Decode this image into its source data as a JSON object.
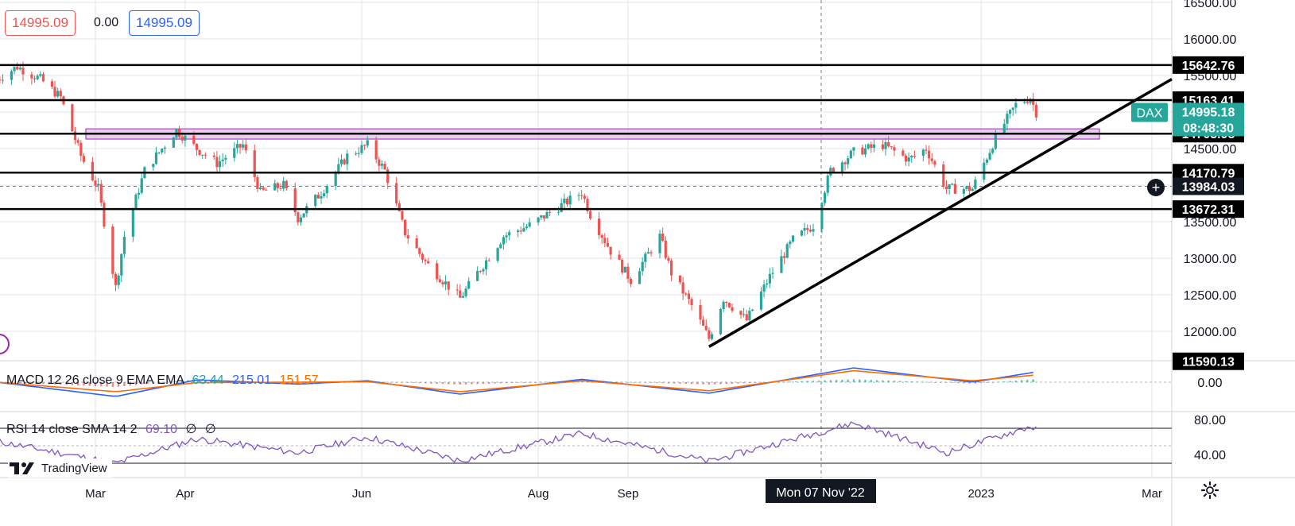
{
  "legend": {
    "sell_price": "14995.09",
    "spread": "0.00",
    "buy_price": "14995.09"
  },
  "colors": {
    "up": "#26a69a",
    "down": "#ef5350",
    "macd_line": "#2962ff",
    "signal_line": "#ff6d00",
    "rsi_line": "#7e57c2",
    "zone_fill": "#e1bee7",
    "zone_stroke": "#ab47bc",
    "level_line": "#000000",
    "grid": "#e0e3eb"
  },
  "indicators": {
    "macd": {
      "label": "MACD 12 26 close 9 EMA EMA",
      "v1": "63.44",
      "v2": "215.01",
      "v3": "151.57",
      "v1_color": "#26a69a",
      "v2_color": "#2962ff",
      "v3_color": "#ff6d00"
    },
    "rsi": {
      "label": "RSI 14 close SMA 14 2",
      "v1": "69.10",
      "v2": "∅",
      "v3": "∅"
    }
  },
  "branding": {
    "logo_text": "TradingView"
  },
  "symbol_tag": {
    "name": "DAX",
    "price": "14995.18",
    "countdown": "08:48:30"
  },
  "crosshair_tag": {
    "date": "Mon 07 Nov '22",
    "price": "13984.03"
  },
  "chart_data": {
    "type": "candlestick",
    "title": "",
    "x_axis": {
      "ticks": [
        "Mar",
        "Apr",
        "Jun",
        "Aug",
        "Sep",
        "2023",
        "Mar"
      ],
      "range": [
        "2022-01-25",
        "2023-03-15"
      ]
    },
    "y_axis": {
      "ticks": [
        12000,
        12500,
        13000,
        13500,
        14000,
        14500,
        15000,
        15500,
        16000,
        16500
      ],
      "tick_labels": [
        "12000.00",
        "12500.00",
        "13000.00",
        "13500.00",
        "14000.00",
        "14500.00",
        "15000.00",
        "15500.00",
        "16000.00",
        "16500.00"
      ],
      "range": [
        11600,
        16550
      ]
    },
    "horizontal_levels": [
      {
        "value": 15642.76,
        "label": "15642.76"
      },
      {
        "value": 15163.41,
        "label": "15163.41"
      },
      {
        "value": 14703.98,
        "label": "14703.98"
      },
      {
        "value": 14170.79,
        "label": "14170.79"
      },
      {
        "value": 13672.31,
        "label": "13672.31"
      },
      {
        "value": 11590.13,
        "label": "11590.13"
      }
    ],
    "resistance_zone": [
      14630,
      14770
    ],
    "trendline": {
      "from": {
        "date": "2022-09-29",
        "value": 11790
      },
      "to": {
        "date": "2023-02-28",
        "value": 15450
      }
    },
    "current_price": 14995.18,
    "ohlc_path": [
      {
        "date": "2022-01-26",
        "value": 15450
      },
      {
        "date": "2022-02-02",
        "value": 15620
      },
      {
        "date": "2022-02-10",
        "value": 15450
      },
      {
        "date": "2022-02-17",
        "value": 15200
      },
      {
        "date": "2022-02-24",
        "value": 14400
      },
      {
        "date": "2022-03-02",
        "value": 13950
      },
      {
        "date": "2022-03-08",
        "value": 12600
      },
      {
        "date": "2022-03-11",
        "value": 13300
      },
      {
        "date": "2022-03-18",
        "value": 14200
      },
      {
        "date": "2022-03-29",
        "value": 14750
      },
      {
        "date": "2022-04-05",
        "value": 14500
      },
      {
        "date": "2022-04-12",
        "value": 14300
      },
      {
        "date": "2022-04-21",
        "value": 14550
      },
      {
        "date": "2022-04-27",
        "value": 13900
      },
      {
        "date": "2022-05-05",
        "value": 14000
      },
      {
        "date": "2022-05-10",
        "value": 13550
      },
      {
        "date": "2022-05-18",
        "value": 13900
      },
      {
        "date": "2022-05-27",
        "value": 14400
      },
      {
        "date": "2022-06-03",
        "value": 14550
      },
      {
        "date": "2022-06-09",
        "value": 14200
      },
      {
        "date": "2022-06-16",
        "value": 13350
      },
      {
        "date": "2022-06-23",
        "value": 12950
      },
      {
        "date": "2022-07-05",
        "value": 12450
      },
      {
        "date": "2022-07-11",
        "value": 12800
      },
      {
        "date": "2022-07-20",
        "value": 13300
      },
      {
        "date": "2022-07-29",
        "value": 13450
      },
      {
        "date": "2022-08-08",
        "value": 13700
      },
      {
        "date": "2022-08-16",
        "value": 13900
      },
      {
        "date": "2022-08-19",
        "value": 13600
      },
      {
        "date": "2022-08-26",
        "value": 13100
      },
      {
        "date": "2022-09-02",
        "value": 12700
      },
      {
        "date": "2022-09-12",
        "value": 13300
      },
      {
        "date": "2022-09-16",
        "value": 12800
      },
      {
        "date": "2022-09-23",
        "value": 12350
      },
      {
        "date": "2022-09-29",
        "value": 11900
      },
      {
        "date": "2022-10-04",
        "value": 12450
      },
      {
        "date": "2022-10-12",
        "value": 12150
      },
      {
        "date": "2022-10-20",
        "value": 12750
      },
      {
        "date": "2022-10-28",
        "value": 13250
      },
      {
        "date": "2022-11-04",
        "value": 13450
      },
      {
        "date": "2022-11-10",
        "value": 14200
      },
      {
        "date": "2022-11-18",
        "value": 14450
      },
      {
        "date": "2022-11-28",
        "value": 14550
      },
      {
        "date": "2022-12-07",
        "value": 14350
      },
      {
        "date": "2022-12-13",
        "value": 14500
      },
      {
        "date": "2022-12-20",
        "value": 13950
      },
      {
        "date": "2022-12-29",
        "value": 13950
      },
      {
        "date": "2023-01-06",
        "value": 14650
      },
      {
        "date": "2023-01-13",
        "value": 15100
      },
      {
        "date": "2023-01-18",
        "value": 15200
      },
      {
        "date": "2023-01-20",
        "value": 14995
      }
    ],
    "macd_path": [
      {
        "date": "2022-01-26",
        "macd": 0,
        "signal": 0
      },
      {
        "date": "2022-03-08",
        "macd": -300,
        "signal": -200
      },
      {
        "date": "2022-04-05",
        "macd": 50,
        "signal": -10
      },
      {
        "date": "2022-05-10",
        "macd": -40,
        "signal": 0
      },
      {
        "date": "2022-06-03",
        "macd": 30,
        "signal": 10
      },
      {
        "date": "2022-07-05",
        "macd": -250,
        "signal": -200
      },
      {
        "date": "2022-08-16",
        "macd": 60,
        "signal": 30
      },
      {
        "date": "2022-09-29",
        "macd": -230,
        "signal": -180
      },
      {
        "date": "2022-11-18",
        "macd": 300,
        "signal": 240
      },
      {
        "date": "2022-12-29",
        "macd": 0,
        "signal": 30
      },
      {
        "date": "2023-01-20",
        "macd": 215.01,
        "signal": 151.57
      }
    ],
    "rsi_path": [
      {
        "date": "2022-01-26",
        "value": 55
      },
      {
        "date": "2022-03-08",
        "value": 30
      },
      {
        "date": "2022-04-05",
        "value": 58
      },
      {
        "date": "2022-05-10",
        "value": 42
      },
      {
        "date": "2022-06-03",
        "value": 60
      },
      {
        "date": "2022-07-05",
        "value": 33
      },
      {
        "date": "2022-08-16",
        "value": 64
      },
      {
        "date": "2022-09-29",
        "value": 32
      },
      {
        "date": "2022-11-18",
        "value": 76
      },
      {
        "date": "2022-12-20",
        "value": 42
      },
      {
        "date": "2023-01-18",
        "value": 72
      },
      {
        "date": "2023-01-20",
        "value": 69.1
      }
    ],
    "macd_axis": {
      "ticks": [
        0
      ],
      "tick_labels": [
        "0.00"
      ]
    },
    "rsi_axis": {
      "ticks": [
        40,
        80
      ],
      "tick_labels": [
        "40.00",
        "80.00"
      ],
      "bands": [
        30,
        70
      ]
    }
  }
}
